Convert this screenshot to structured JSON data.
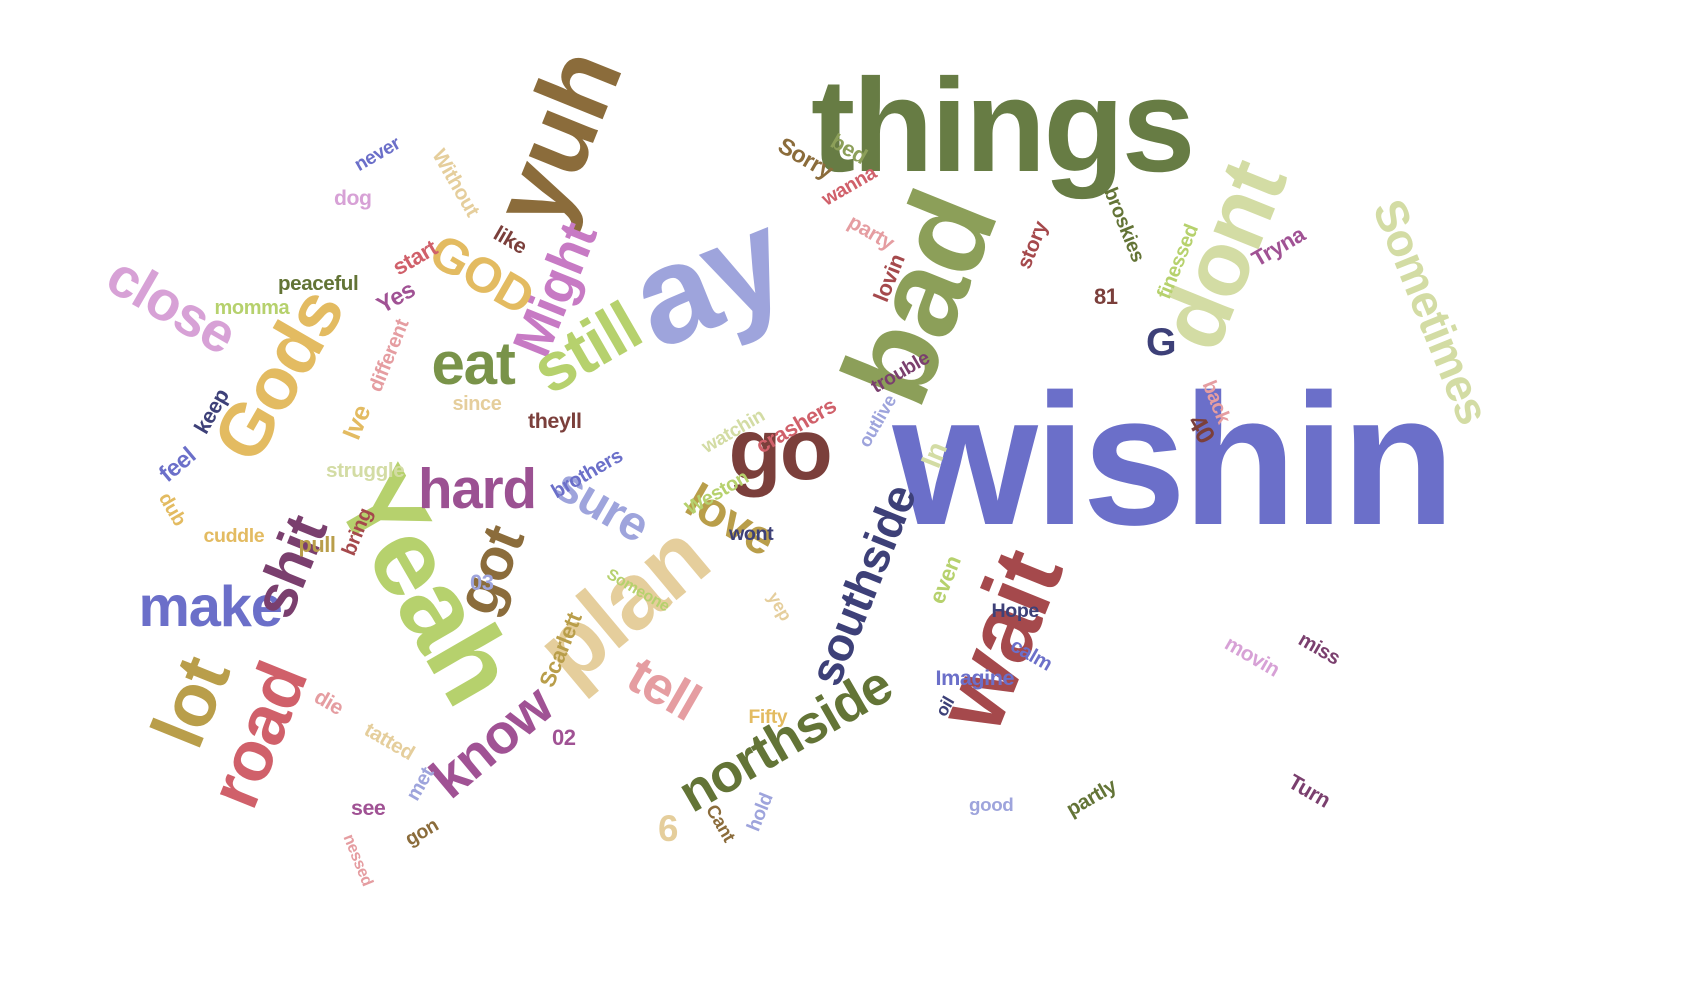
{
  "words": [
    {
      "text": "wishin",
      "color": "#6b6fc9"
    },
    {
      "text": "things",
      "color": "#677c44"
    },
    {
      "text": "bad",
      "color": "#8c9f59"
    },
    {
      "text": "dont",
      "color": "#d3dca4"
    },
    {
      "text": "ay",
      "color": "#9ea4dc"
    },
    {
      "text": "yuh",
      "color": "#8b6c3b"
    },
    {
      "text": "Sometimes",
      "color": "#d3dca4"
    },
    {
      "text": "Yeah",
      "color": "#b6d16d"
    },
    {
      "text": "plan",
      "color": "#e5ce9c"
    },
    {
      "text": "go",
      "color": "#7b3f3b"
    },
    {
      "text": "wait",
      "color": "#a5494c"
    },
    {
      "text": "Gods",
      "color": "#e3bb61"
    },
    {
      "text": "southside",
      "color": "#3d4078"
    },
    {
      "text": "northside",
      "color": "#637436"
    },
    {
      "text": "road",
      "color": "#d0606a"
    },
    {
      "text": "lot",
      "color": "#b99e4a"
    },
    {
      "text": "know",
      "color": "#a05294"
    },
    {
      "text": "Might",
      "color": "#c77ac4"
    },
    {
      "text": "close",
      "color": "#d7a1d6"
    },
    {
      "text": "love",
      "color": "#b99e4a"
    },
    {
      "text": "sure",
      "color": "#9ea4dc"
    },
    {
      "text": "make",
      "color": "#6b6fc9"
    },
    {
      "text": "hard",
      "color": "#9b5192"
    },
    {
      "text": "tell",
      "color": "#e59da1"
    },
    {
      "text": "eat",
      "color": "#799349"
    },
    {
      "text": "still",
      "color": "#b6d16d"
    },
    {
      "text": "got",
      "color": "#8b6c3b"
    },
    {
      "text": "shit",
      "color": "#7a3f6e"
    },
    {
      "text": "GOD",
      "color": "#e3bb61"
    },
    {
      "text": "G",
      "color": "#3d4078"
    },
    {
      "text": "peaceful",
      "color": "#637436"
    },
    {
      "text": "momma",
      "color": "#b6d16d"
    },
    {
      "text": "never",
      "color": "#6b6fc9"
    },
    {
      "text": "dog",
      "color": "#d7a1d6"
    },
    {
      "text": "Without",
      "color": "#e5ce9c"
    },
    {
      "text": "like",
      "color": "#7b3f3b"
    },
    {
      "text": "start",
      "color": "#d0606a"
    },
    {
      "text": "Yes",
      "color": "#a05294"
    },
    {
      "text": "different",
      "color": "#e59da1"
    },
    {
      "text": "since",
      "color": "#e5ce9c"
    },
    {
      "text": "theyll",
      "color": "#7b3f3b"
    },
    {
      "text": "keep",
      "color": "#3d4078"
    },
    {
      "text": "Ive",
      "color": "#e3bb61"
    },
    {
      "text": "feel",
      "color": "#6b6fc9"
    },
    {
      "text": "struggle",
      "color": "#d3dca4"
    },
    {
      "text": "dub",
      "color": "#e3bb61"
    },
    {
      "text": "cuddle",
      "color": "#e3bb61"
    },
    {
      "text": "pull",
      "color": "#b99e4a"
    },
    {
      "text": "bring",
      "color": "#a5494c"
    },
    {
      "text": "03",
      "color": "#9ea4dc"
    },
    {
      "text": "Someone",
      "color": "#b6d16d"
    },
    {
      "text": "Weston",
      "color": "#b6d16d"
    },
    {
      "text": "wont",
      "color": "#3d4078"
    },
    {
      "text": "brothers",
      "color": "#6b6fc9"
    },
    {
      "text": "watchin",
      "color": "#d3dca4"
    },
    {
      "text": "crashers",
      "color": "#d0606a"
    },
    {
      "text": "outlive",
      "color": "#9ea4dc"
    },
    {
      "text": "trouble",
      "color": "#7a3f6e"
    },
    {
      "text": "In",
      "color": "#d3dca4"
    },
    {
      "text": "Sorry",
      "color": "#8b6c3b"
    },
    {
      "text": "bed",
      "color": "#8c9f59"
    },
    {
      "text": "wanna",
      "color": "#d0606a"
    },
    {
      "text": "party",
      "color": "#e59da1"
    },
    {
      "text": "story",
      "color": "#a5494c"
    },
    {
      "text": "lovin",
      "color": "#a5494c"
    },
    {
      "text": "81",
      "color": "#7b3f3b"
    },
    {
      "text": "broskies",
      "color": "#637436"
    },
    {
      "text": "finessed",
      "color": "#b6d16d"
    },
    {
      "text": "Tryna",
      "color": "#a05294"
    },
    {
      "text": "back",
      "color": "#e59da1"
    },
    {
      "text": "40",
      "color": "#7b3f3b"
    },
    {
      "text": "Scarlett",
      "color": "#b99e4a"
    },
    {
      "text": "yep",
      "color": "#e5ce9c"
    },
    {
      "text": "even",
      "color": "#b6d16d"
    },
    {
      "text": "Hope",
      "color": "#3d4078"
    },
    {
      "text": "calm",
      "color": "#6b6fc9"
    },
    {
      "text": "Imagine",
      "color": "#6b6fc9"
    },
    {
      "text": "oil",
      "color": "#3d4078"
    },
    {
      "text": "Fifty",
      "color": "#e3bb61"
    },
    {
      "text": "02",
      "color": "#a05294"
    },
    {
      "text": "die",
      "color": "#e59da1"
    },
    {
      "text": "tatted",
      "color": "#e5ce9c"
    },
    {
      "text": "met",
      "color": "#9ea4dc"
    },
    {
      "text": "see",
      "color": "#a05294"
    },
    {
      "text": "gon",
      "color": "#8b6c3b"
    },
    {
      "text": "nessed",
      "color": "#e59da1"
    },
    {
      "text": "6",
      "color": "#e5ce9c"
    },
    {
      "text": "Cant",
      "color": "#8b6c3b"
    },
    {
      "text": "hold",
      "color": "#9ea4dc"
    },
    {
      "text": "good",
      "color": "#9ea4dc"
    },
    {
      "text": "partly",
      "color": "#637436"
    },
    {
      "text": "miss",
      "color": "#7a3f6e"
    },
    {
      "text": "movin",
      "color": "#d7a1d6"
    },
    {
      "text": "Turn",
      "color": "#7a3f6e"
    }
  ]
}
